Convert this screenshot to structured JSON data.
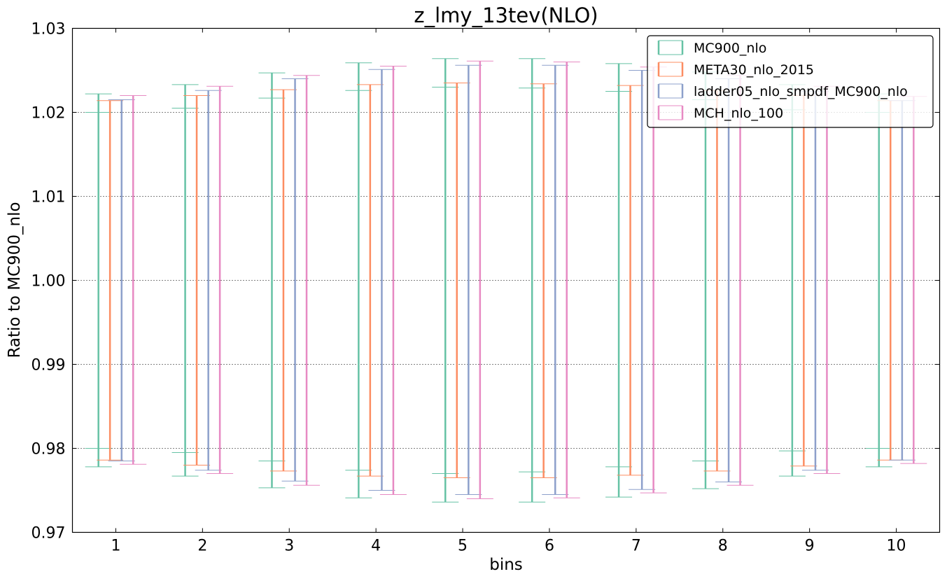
{
  "chart_data": {
    "type": "errorbar",
    "title": "z_lmy_13tev(NLO)",
    "xlabel": "bins",
    "ylabel": "Ratio to MC900_nlo",
    "xlim": [
      0.5,
      10.5
    ],
    "ylim": [
      0.97,
      1.03
    ],
    "x": [
      1,
      2,
      3,
      4,
      5,
      6,
      7,
      8,
      9,
      10
    ],
    "x_ticks": [
      "1",
      "2",
      "3",
      "4",
      "5",
      "6",
      "7",
      "8",
      "9",
      "10"
    ],
    "y_ticks": [
      "0.97",
      "0.98",
      "0.99",
      "1.00",
      "1.01",
      "1.02",
      "1.03"
    ],
    "grid": "horizontal dotted",
    "legend_position": "top-right",
    "series": [
      {
        "name": "MC900_nlo",
        "color": "#66c2a5",
        "low": [
          0.9778,
          0.9767,
          0.9753,
          0.9741,
          0.9736,
          0.9736,
          0.9742,
          0.9752,
          0.9767,
          0.9778
        ],
        "high": [
          1.0222,
          1.0233,
          1.0247,
          1.0259,
          1.0264,
          1.0264,
          1.0258,
          1.0248,
          1.0233,
          1.0222
        ],
        "inner_low": [
          0.98,
          0.9795,
          0.9785,
          0.9774,
          0.977,
          0.9772,
          0.9778,
          0.9785,
          0.9797,
          0.98
        ],
        "inner_high": [
          1.02,
          1.0205,
          1.0217,
          1.0226,
          1.023,
          1.0229,
          1.0225,
          1.0215,
          1.0203,
          1.02
        ]
      },
      {
        "name": "META30_nlo_2015",
        "color": "#fc8d62",
        "low": [
          0.9786,
          0.978,
          0.9773,
          0.9767,
          0.9765,
          0.9765,
          0.9768,
          0.9773,
          0.9779,
          0.9786
        ],
        "high": [
          1.0214,
          1.022,
          1.0227,
          1.0233,
          1.0235,
          1.0234,
          1.0232,
          1.0226,
          1.022,
          1.0214
        ]
      },
      {
        "name": "ladder05_nlo_smpdf_MC900_nlo",
        "color": "#8da0cb",
        "low": [
          0.9785,
          0.9774,
          0.9761,
          0.975,
          0.9745,
          0.9745,
          0.9751,
          0.976,
          0.9774,
          0.9786
        ],
        "high": [
          1.0215,
          1.0226,
          1.024,
          1.0251,
          1.0256,
          1.0256,
          1.025,
          1.024,
          1.0225,
          1.0214
        ]
      },
      {
        "name": "MCH_nlo_100",
        "color": "#e78ac3",
        "low": [
          0.9781,
          0.977,
          0.9756,
          0.9745,
          0.974,
          0.9741,
          0.9747,
          0.9756,
          0.977,
          0.9782
        ],
        "high": [
          1.022,
          1.0231,
          1.0244,
          1.0255,
          1.0261,
          1.026,
          1.0254,
          1.0244,
          1.0231,
          1.0219
        ]
      }
    ]
  }
}
